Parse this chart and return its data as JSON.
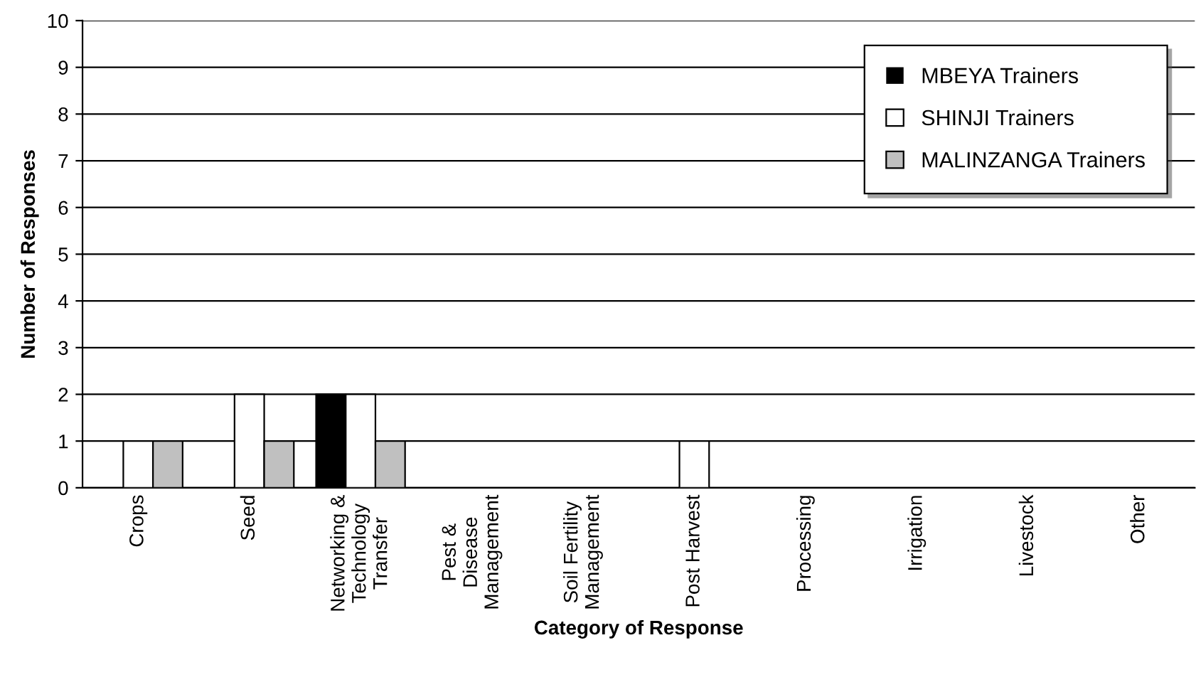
{
  "chart_data": {
    "type": "bar",
    "xlabel": "Category of Response",
    "ylabel": "Number of Responses",
    "categories": [
      "Crops",
      "Seed",
      "Networking &\nTechnology\nTransfer",
      "Pest &\nDisease\nManagement",
      "Soil Fertility\nManagement",
      "Post Harvest",
      "Processing",
      "Irrigation",
      "Livestock",
      "Other"
    ],
    "series": [
      {
        "name": "MBEYA Trainers",
        "color": "#000000",
        "values": [
          0,
          0,
          2,
          0,
          0,
          0,
          0,
          0,
          0,
          0
        ]
      },
      {
        "name": "SHINJI Trainers",
        "color": "#ffffff",
        "values": [
          1,
          2,
          2,
          0,
          0,
          1,
          0,
          0,
          0,
          0
        ]
      },
      {
        "name": "MALINZANGA Trainers",
        "color": "#c0c0c0",
        "values": [
          1,
          1,
          1,
          0,
          0,
          0,
          0,
          0,
          0,
          0
        ]
      }
    ],
    "ylim": [
      0,
      10
    ],
    "yticks": [
      0,
      1,
      2,
      3,
      4,
      5,
      6,
      7,
      8,
      9,
      10
    ],
    "grid": "y",
    "legend": "top right"
  }
}
